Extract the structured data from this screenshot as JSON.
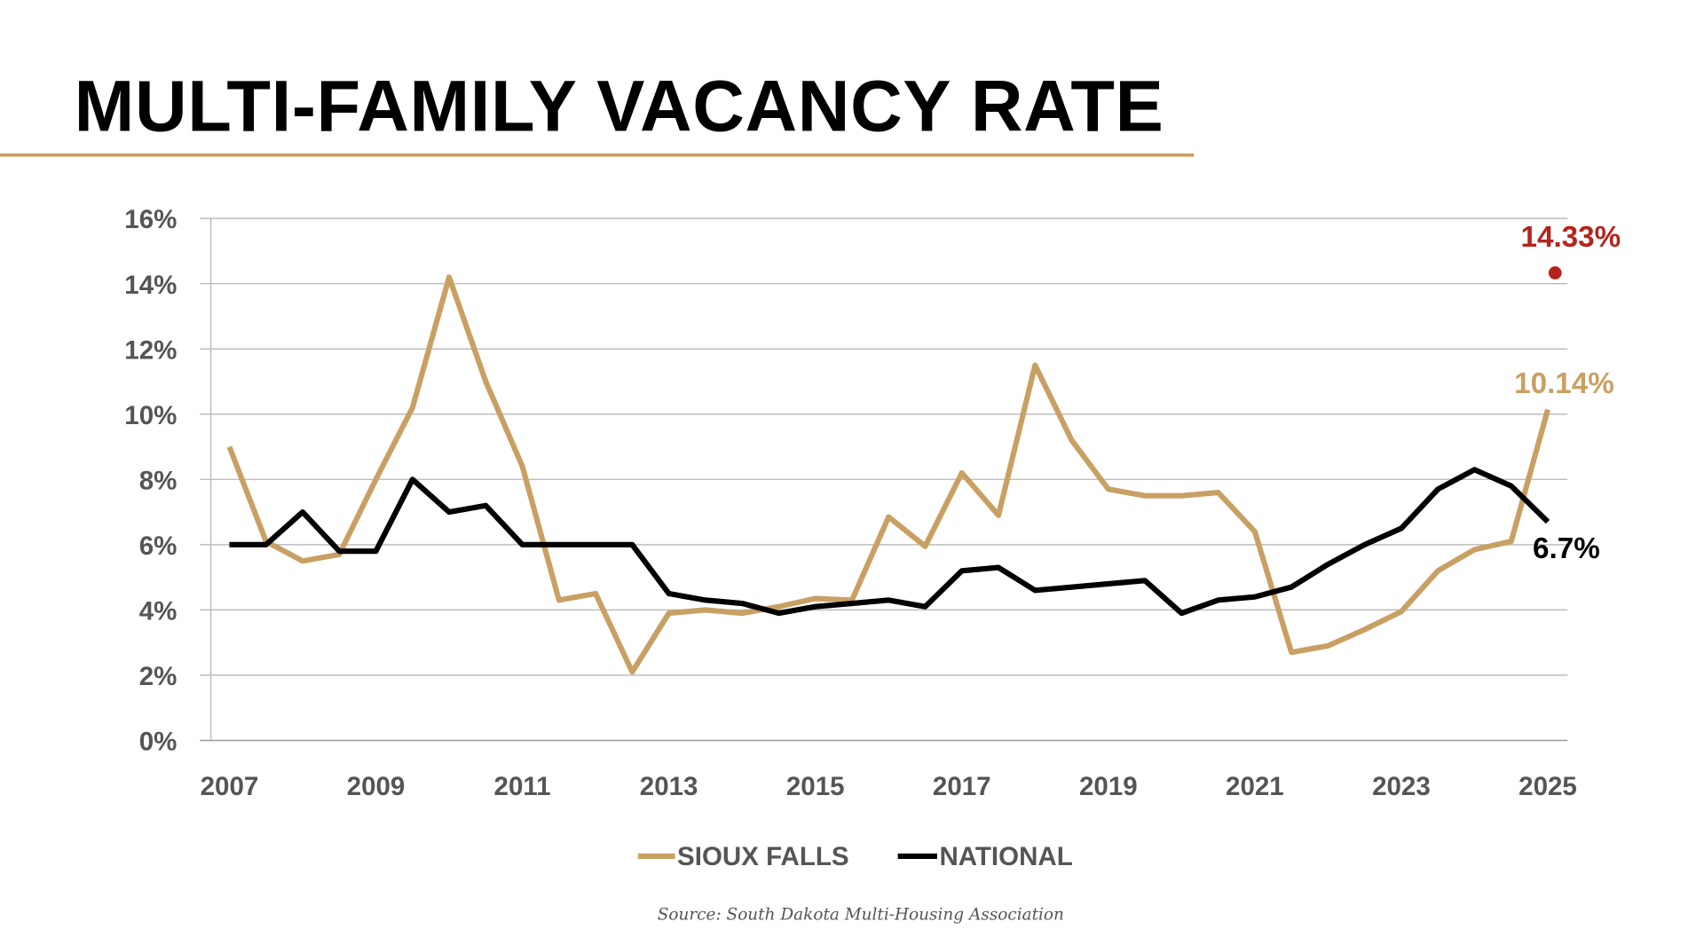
{
  "title": "MULTI-FAMILY VACANCY RATE",
  "source": "Source: South Dakota Multi-Housing Association",
  "colors": {
    "sioux_falls": "#c9a063",
    "national": "#000000",
    "highlight": "#b5231c",
    "rule": "#c9a063"
  },
  "chart_data": {
    "type": "line",
    "title": "MULTI-FAMILY VACANCY RATE",
    "xlabel": "",
    "ylabel": "",
    "xlim": [
      2007,
      2025
    ],
    "ylim": [
      0,
      16
    ],
    "y_ticks": [
      0,
      2,
      4,
      6,
      8,
      10,
      12,
      14,
      16
    ],
    "y_tick_labels": [
      "0%",
      "2%",
      "4%",
      "6%",
      "8%",
      "10%",
      "12%",
      "14%",
      "16%"
    ],
    "x_ticks": [
      2007,
      2009,
      2011,
      2013,
      2015,
      2017,
      2019,
      2021,
      2023,
      2025
    ],
    "x_tick_labels": [
      "2007",
      "2009",
      "2011",
      "2013",
      "2015",
      "2017",
      "2019",
      "2021",
      "2023",
      "2025"
    ],
    "grid": true,
    "legend_position": "bottom-center",
    "x": [
      2007,
      2007.5,
      2008,
      2008.5,
      2009,
      2009.5,
      2010,
      2010.5,
      2011,
      2011.5,
      2012,
      2012.5,
      2013,
      2013.5,
      2014,
      2014.5,
      2015,
      2015.5,
      2016,
      2016.5,
      2017,
      2017.5,
      2018,
      2018.5,
      2019,
      2019.5,
      2020,
      2020.5,
      2021,
      2021.5,
      2022,
      2022.5,
      2023,
      2023.5,
      2024,
      2024.5,
      2025
    ],
    "series": [
      {
        "name": "SIOUX FALLS",
        "values": [
          9.0,
          6.1,
          5.5,
          5.7,
          8.0,
          10.2,
          14.2,
          11.0,
          8.4,
          4.3,
          4.5,
          2.1,
          3.9,
          4.0,
          3.9,
          4.1,
          4.35,
          4.3,
          6.85,
          5.95,
          8.2,
          6.9,
          11.5,
          9.2,
          7.7,
          7.5,
          7.5,
          7.6,
          6.4,
          2.7,
          2.9,
          3.4,
          3.95,
          5.2,
          5.85,
          6.1,
          10.14
        ]
      },
      {
        "name": "NATIONAL",
        "values": [
          6.0,
          6.0,
          7.0,
          5.8,
          5.8,
          8.0,
          7.0,
          7.2,
          6.0,
          6.0,
          6.0,
          6.0,
          4.5,
          4.3,
          4.2,
          3.9,
          4.1,
          4.2,
          4.3,
          4.1,
          5.2,
          5.3,
          4.6,
          4.7,
          4.8,
          4.9,
          3.9,
          4.3,
          4.4,
          4.7,
          5.4,
          6.0,
          6.5,
          7.7,
          8.3,
          7.8,
          6.7
        ]
      }
    ],
    "annotations": [
      {
        "text": "14.33%",
        "x": 2025.1,
        "y": 14.33,
        "series": "highlight"
      },
      {
        "text": "10.14%",
        "x": 2025,
        "y": 10.14,
        "series": "SIOUX FALLS"
      },
      {
        "text": "6.7%",
        "x": 2025,
        "y": 6.7,
        "series": "NATIONAL"
      }
    ]
  }
}
